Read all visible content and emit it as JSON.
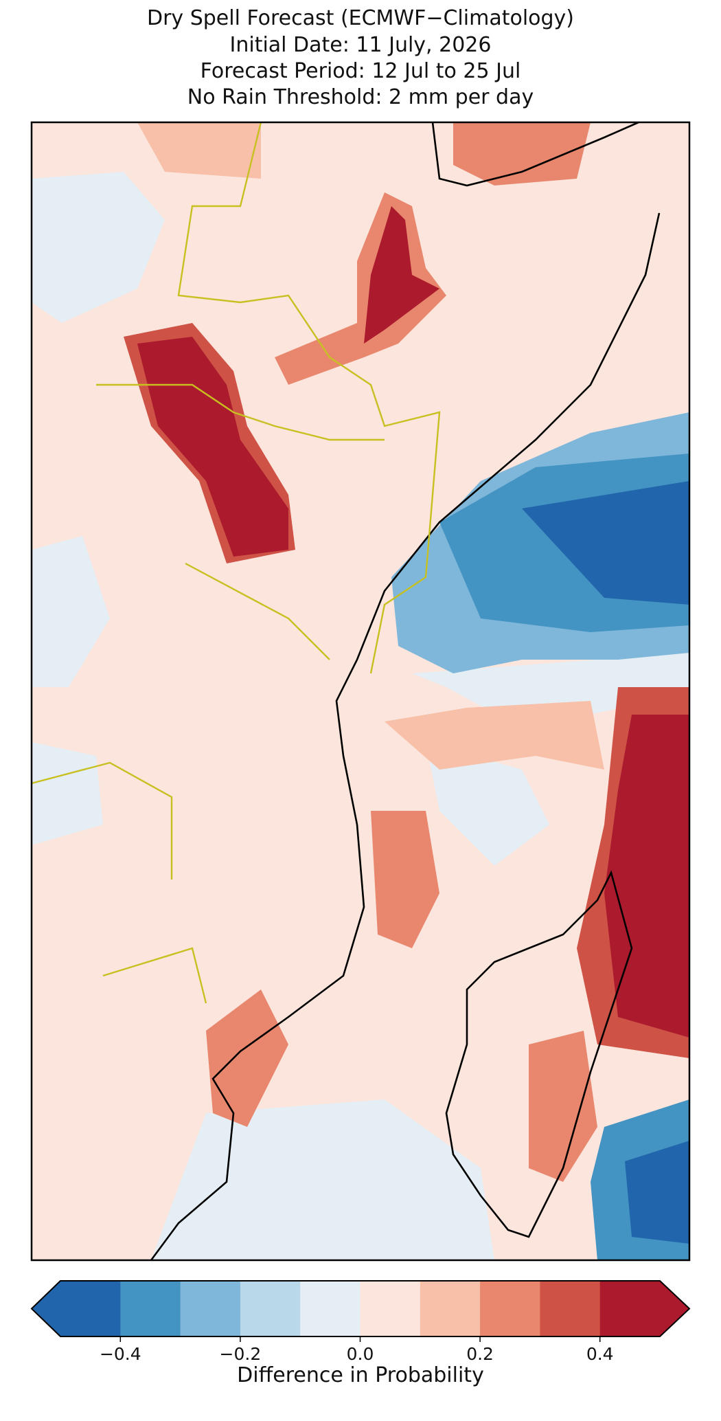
{
  "chart_data": {
    "type": "map",
    "title": [
      "Dry Spell Forecast (ECMWF−Climatology)",
      "Initial Date: 11 July, 2026",
      "Forecast Period: 12 Jul to 25 Jul",
      "No Rain Threshold: 2 mm per day"
    ],
    "colorbar": {
      "label": "Difference in Probability",
      "lim": [
        -0.5,
        0.5
      ],
      "boundaries": [
        -0.5,
        -0.4,
        -0.3,
        -0.2,
        -0.1,
        0,
        0.1,
        0.2,
        0.3,
        0.4,
        0.5
      ],
      "colors": [
        "#2166ac",
        "#4393c3",
        "#7fb7da",
        "#b9d9ea",
        "#e5eef4",
        "#fbe5dc",
        "#f8c0a8",
        "#e8876d",
        "#cf5246",
        "#ac1a2e"
      ],
      "extend_colors": [
        "#2166ac",
        "#ac1a2e"
      ],
      "ticks": [
        {
          "value": -0.4,
          "label": "−0.4"
        },
        {
          "value": -0.2,
          "label": "−0.2"
        },
        {
          "value": 0,
          "label": "0.0"
        },
        {
          "value": 0.2,
          "label": "0.2"
        },
        {
          "value": 0.4,
          "label": "0.4"
        }
      ]
    }
  }
}
